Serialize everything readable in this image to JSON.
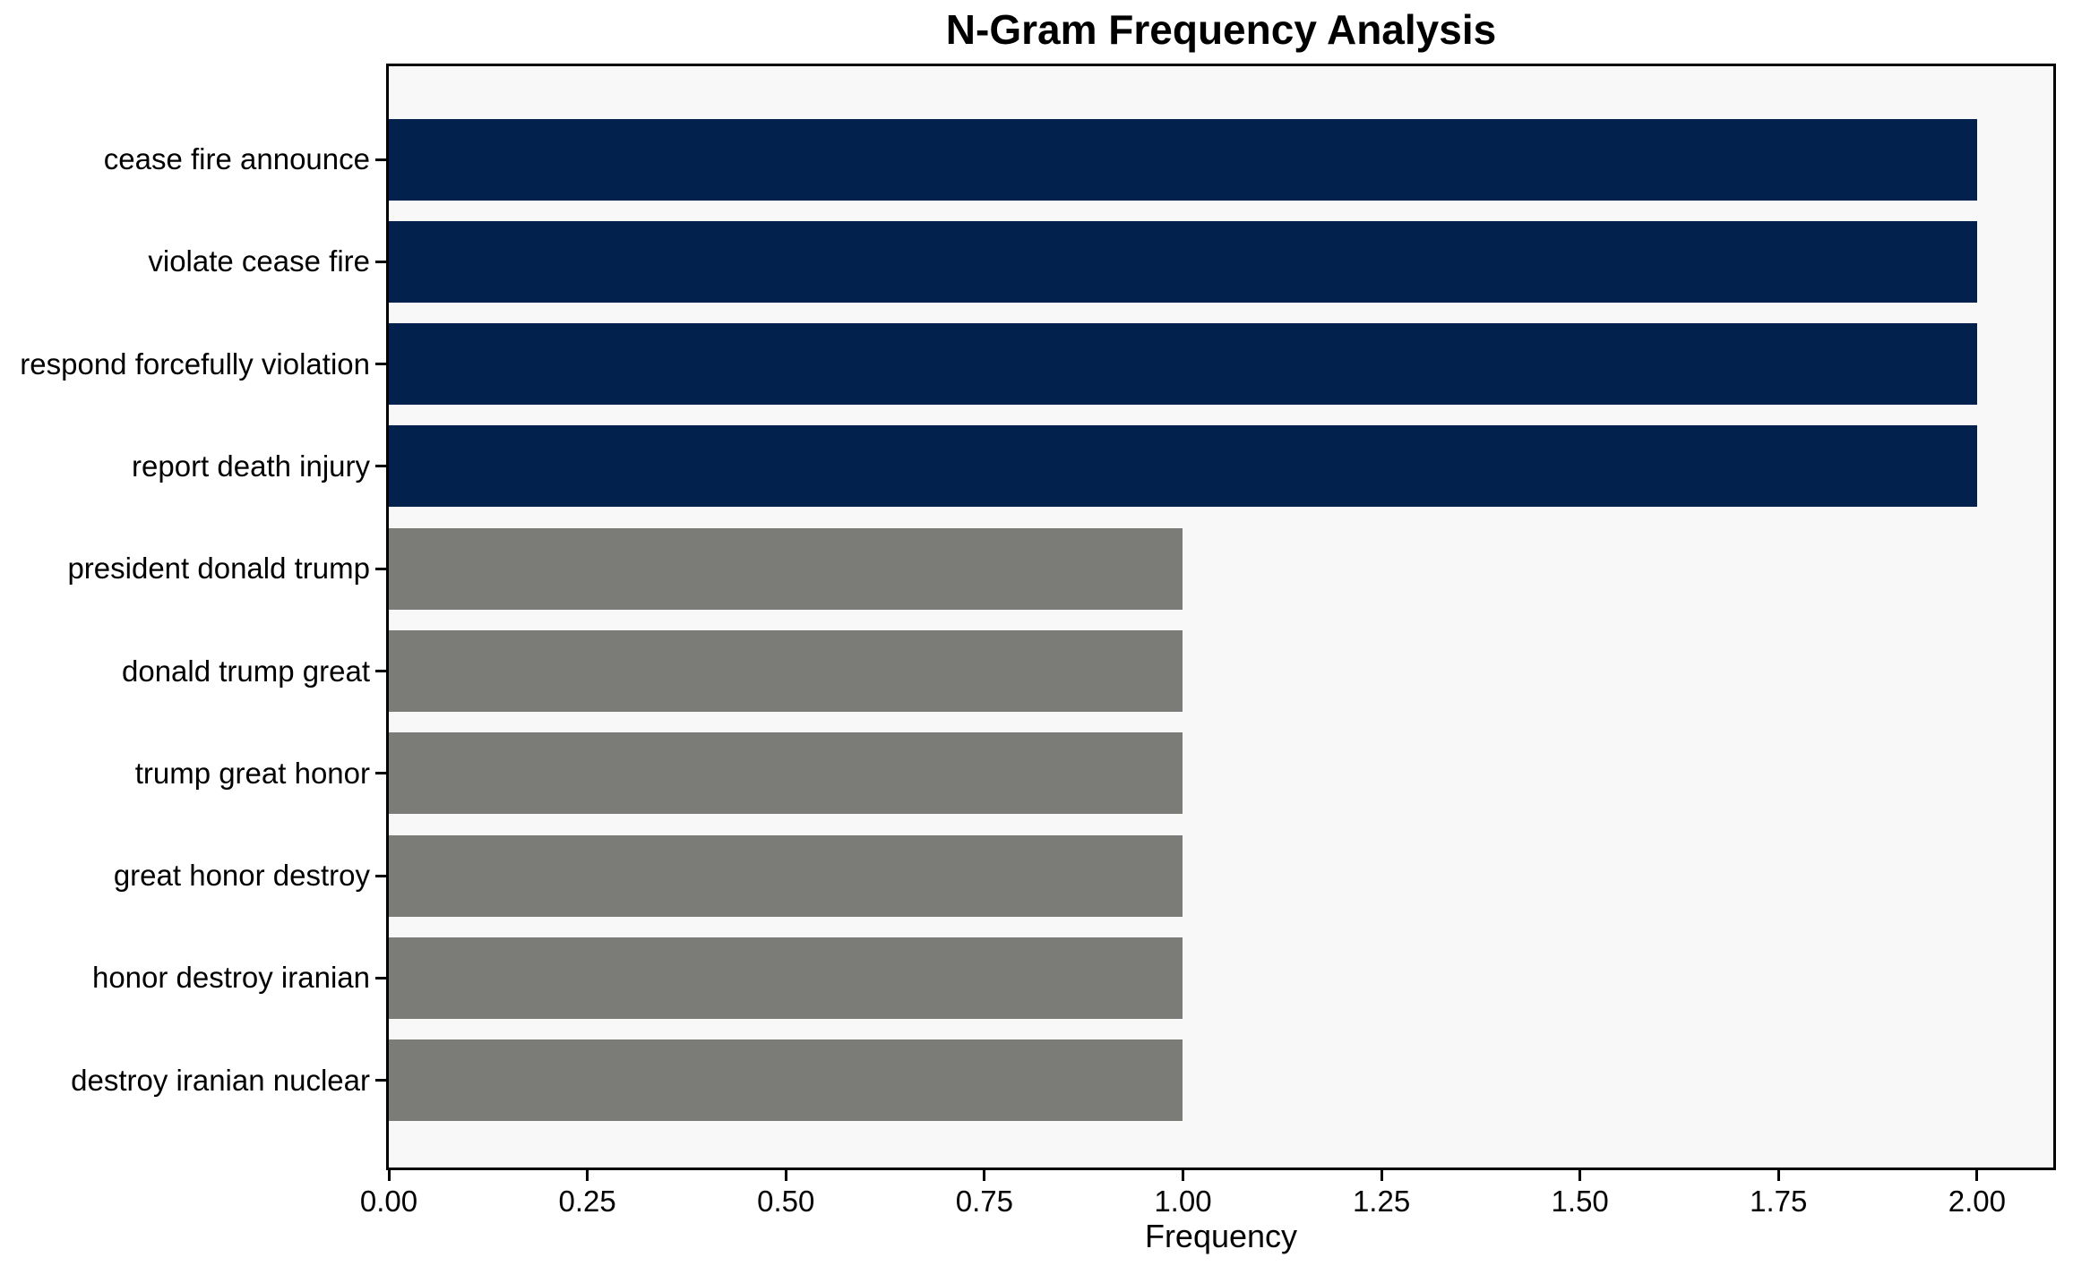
{
  "figure": {
    "background": "#ffffff"
  },
  "chart_data": {
    "type": "bar",
    "orientation": "horizontal",
    "title": "N-Gram Frequency Analysis",
    "xlabel": "Frequency",
    "ylabel": "",
    "categories": [
      "cease fire announce",
      "violate cease fire",
      "respond forcefully violation",
      "report death injury",
      "president donald trump",
      "donald trump great",
      "trump great honor",
      "great honor destroy",
      "honor destroy iranian",
      "destroy iranian nuclear"
    ],
    "values": [
      2,
      2,
      2,
      2,
      1,
      1,
      1,
      1,
      1,
      1
    ],
    "bar_colors": [
      "#02224d",
      "#02224d",
      "#02224d",
      "#02224d",
      "#7b7b77",
      "#7b7b77",
      "#7b7b77",
      "#7b7b77",
      "#7b7b77",
      "#7b7b77"
    ],
    "x_ticks": [
      "0.00",
      "0.25",
      "0.50",
      "0.75",
      "1.00",
      "1.25",
      "1.50",
      "1.75",
      "2.00"
    ],
    "xlim": [
      0,
      2.096
    ],
    "grid": false,
    "legend": null,
    "plot_background": "#f8f8f8",
    "spine_color": "#000000"
  }
}
